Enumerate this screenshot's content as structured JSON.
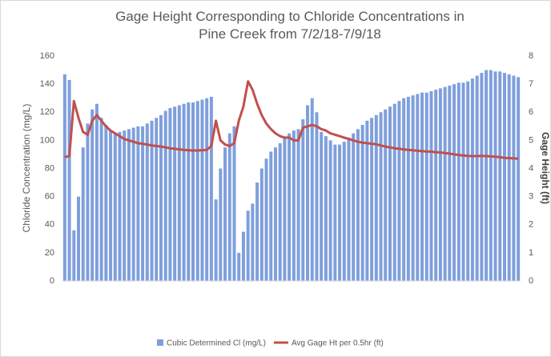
{
  "chart_data": {
    "type": "bar_line",
    "title": "Gage Height Corresponding to Chloride Concentrations in Pine Creek from 7/2/18-7/9/18",
    "y_label": "Chloride Concentration (mg/L)",
    "y2_label": "Gage Height (ft)",
    "categories": [
      null,
      null,
      null,
      null,
      null,
      null,
      null,
      null,
      null,
      null,
      null,
      null,
      null,
      null,
      null,
      null,
      null,
      null,
      null,
      null,
      null,
      null,
      null,
      null,
      null,
      null,
      null,
      null,
      null,
      null,
      null,
      null,
      null,
      null,
      null,
      null,
      null,
      null,
      null,
      null,
      null,
      null,
      null,
      null,
      null,
      null,
      null,
      null,
      null,
      null,
      null,
      null,
      null,
      null,
      null,
      null,
      null,
      null,
      null,
      null,
      null,
      null,
      null,
      null,
      null,
      null,
      null,
      null,
      null,
      null,
      null,
      null,
      null,
      null,
      null,
      null,
      null,
      null,
      null,
      null,
      null,
      null,
      null,
      null,
      null,
      null,
      null,
      null,
      null,
      null,
      null,
      null,
      null,
      null,
      null,
      null,
      null,
      null,
      null,
      null
    ],
    "series": [
      {
        "name": "Cubic Determined Cl (mg/L)",
        "color": "#7f9fdc",
        "type": "bar",
        "values": [
          147,
          143,
          36,
          60,
          95,
          112,
          122,
          126,
          116,
          111,
          107,
          105,
          106,
          107,
          108,
          109,
          110,
          110,
          112,
          114,
          116,
          118,
          121,
          123,
          124,
          125,
          126,
          127,
          127,
          128,
          129,
          130,
          131,
          58,
          80,
          95,
          105,
          110,
          20,
          35,
          50,
          55,
          70,
          80,
          87,
          92,
          95,
          98,
          102,
          105,
          107,
          108,
          115,
          125,
          130,
          120,
          106,
          103,
          100,
          97,
          97,
          99,
          102,
          105,
          108,
          111,
          114,
          116,
          118,
          120,
          122,
          124,
          126,
          128,
          130,
          131,
          132,
          133,
          134,
          134,
          135,
          136,
          137,
          138,
          139,
          140,
          141,
          141,
          142,
          144,
          146,
          148,
          150,
          150,
          149,
          149,
          148,
          147,
          146,
          145
        ]
      },
      {
        "name": "Avg Gage Ht per 0.5hr (ft)",
        "color": "#c0504d",
        "type": "line",
        "axis": "y2",
        "values": [
          4.4,
          4.45,
          6.4,
          5.8,
          5.3,
          5.2,
          5.7,
          5.9,
          5.7,
          5.5,
          5.35,
          5.25,
          5.15,
          5.05,
          5.0,
          4.95,
          4.9,
          4.88,
          4.85,
          4.82,
          4.8,
          4.78,
          4.75,
          4.72,
          4.7,
          4.68,
          4.66,
          4.65,
          4.64,
          4.64,
          4.65,
          4.66,
          4.8,
          5.7,
          5.0,
          4.85,
          4.8,
          4.9,
          5.7,
          6.2,
          7.1,
          6.8,
          6.3,
          5.9,
          5.6,
          5.4,
          5.25,
          5.15,
          5.1,
          5.1,
          5.0,
          5.0,
          5.45,
          5.5,
          5.55,
          5.5,
          5.4,
          5.35,
          5.25,
          5.2,
          5.15,
          5.1,
          5.05,
          5.0,
          4.95,
          4.92,
          4.9,
          4.88,
          4.86,
          4.82,
          4.78,
          4.75,
          4.72,
          4.7,
          4.68,
          4.66,
          4.65,
          4.63,
          4.62,
          4.6,
          4.6,
          4.58,
          4.57,
          4.55,
          4.53,
          4.5,
          4.48,
          4.46,
          4.45,
          4.44,
          4.44,
          4.45,
          4.44,
          4.43,
          4.42,
          4.4,
          4.38,
          4.37,
          4.36,
          4.35
        ]
      }
    ],
    "ylim": [
      0,
      160
    ],
    "yticks": [
      0,
      20,
      40,
      60,
      80,
      100,
      120,
      140,
      160
    ],
    "y2lim": [
      0,
      8
    ],
    "y2ticks": [
      0,
      1,
      2,
      3,
      4,
      5,
      6,
      7,
      8
    ],
    "legend": "bottom"
  }
}
